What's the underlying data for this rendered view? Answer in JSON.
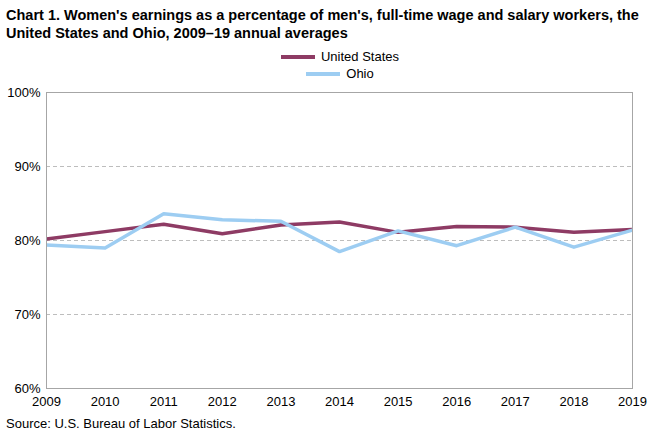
{
  "chart_data": {
    "type": "line",
    "title": "Chart 1. Women's earnings as a percentage of men's, full-time wage and salary workers, the United States and Ohio, 2009–19 annual averages",
    "source": "Source:  U.S. Bureau of Labor Statistics.",
    "x": [
      2009,
      2010,
      2011,
      2012,
      2013,
      2014,
      2015,
      2016,
      2017,
      2018,
      2019
    ],
    "series": [
      {
        "name": "United States",
        "color": "#8e3b64",
        "values": [
          80.2,
          81.2,
          82.2,
          80.9,
          82.1,
          82.5,
          81.1,
          81.9,
          81.8,
          81.1,
          81.5
        ]
      },
      {
        "name": "Ohio",
        "color": "#9dcdf2",
        "values": [
          79.4,
          79.0,
          83.6,
          82.8,
          82.6,
          78.5,
          81.3,
          79.3,
          81.8,
          79.1,
          81.4
        ]
      }
    ],
    "xlim": [
      2009,
      2019
    ],
    "xticks": [
      2009,
      2010,
      2011,
      2012,
      2013,
      2014,
      2015,
      2016,
      2017,
      2018,
      2019
    ],
    "ylim": [
      60,
      100
    ],
    "yticks": [
      {
        "value": 60,
        "label": "60%"
      },
      {
        "value": 70,
        "label": "70%"
      },
      {
        "value": 80,
        "label": "80%"
      },
      {
        "value": 90,
        "label": "90%"
      },
      {
        "value": 100,
        "label": "100%"
      }
    ],
    "grid": true,
    "legend": "top"
  }
}
